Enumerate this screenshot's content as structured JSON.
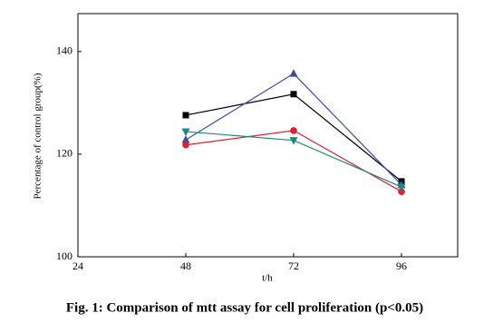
{
  "chart_data": {
    "type": "line",
    "title": "Fig. 1: Comparison of mtt assay for cell proliferation (p<0.05)",
    "x_label": "t/h",
    "y_label": "Percentage of control group(%)",
    "x": [
      48,
      72,
      96
    ],
    "series": [
      {
        "color": "#000000",
        "marker": "square",
        "values": [
          127.6,
          131.7,
          114.7
        ]
      },
      {
        "color": "#3a4fa0",
        "marker": "triangle-up",
        "values": [
          122.8,
          135.7,
          114
        ]
      },
      {
        "color": "#e02030",
        "marker": "circle",
        "values": [
          121.8,
          124.6,
          112.7
        ]
      },
      {
        "color": "#1a8a80",
        "marker": "triangle-down",
        "values": [
          124.4,
          122.7,
          113.6
        ]
      }
    ],
    "xlim": [
      24,
      108.5
    ],
    "xticks": [
      24,
      48,
      72,
      96
    ],
    "ylim": [
      100,
      147.4
    ],
    "yticks": [
      100,
      120,
      140
    ]
  }
}
